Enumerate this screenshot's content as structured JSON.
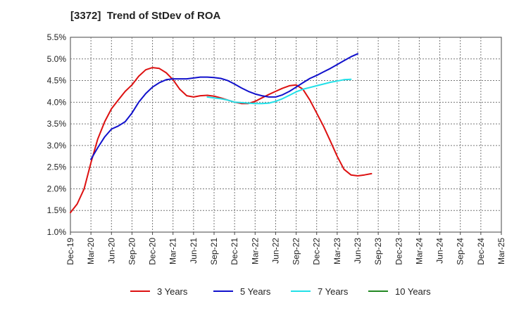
{
  "chart_data": {
    "type": "line",
    "title": "[3372]  Trend of StDev of ROA",
    "xlabel": "",
    "ylabel": "",
    "ylim": [
      1.0,
      5.5
    ],
    "yticks": [
      "1.0%",
      "1.5%",
      "2.0%",
      "2.5%",
      "3.0%",
      "3.5%",
      "4.0%",
      "4.5%",
      "5.0%",
      "5.5%"
    ],
    "categories": [
      "Dec-19",
      "Mar-20",
      "Jun-20",
      "Sep-20",
      "Dec-20",
      "Mar-21",
      "Jun-21",
      "Sep-21",
      "Dec-21",
      "Mar-22",
      "Jun-22",
      "Sep-22",
      "Dec-22",
      "Mar-23",
      "Jun-23",
      "Sep-23",
      "Dec-23",
      "Mar-24",
      "Jun-24",
      "Sep-24",
      "Dec-24",
      "Mar-25"
    ],
    "grid": true,
    "legend_position": "bottom",
    "series": [
      {
        "name": "3 Years",
        "color": "#dd1111",
        "points": [
          [
            0,
            1.45
          ],
          [
            0.33,
            1.65
          ],
          [
            0.67,
            2.0
          ],
          [
            1,
            2.6
          ],
          [
            1.33,
            3.15
          ],
          [
            1.67,
            3.55
          ],
          [
            2,
            3.85
          ],
          [
            2.33,
            4.05
          ],
          [
            2.67,
            4.25
          ],
          [
            3,
            4.4
          ],
          [
            3.33,
            4.6
          ],
          [
            3.67,
            4.75
          ],
          [
            4,
            4.8
          ],
          [
            4.33,
            4.78
          ],
          [
            4.67,
            4.68
          ],
          [
            5,
            4.52
          ],
          [
            5.33,
            4.3
          ],
          [
            5.67,
            4.15
          ],
          [
            6,
            4.12
          ],
          [
            6.33,
            4.15
          ],
          [
            6.67,
            4.16
          ],
          [
            7,
            4.14
          ],
          [
            7.33,
            4.1
          ],
          [
            7.67,
            4.05
          ],
          [
            8,
            4.0
          ],
          [
            8.33,
            3.97
          ],
          [
            8.67,
            3.97
          ],
          [
            9,
            4.02
          ],
          [
            9.33,
            4.1
          ],
          [
            9.67,
            4.18
          ],
          [
            10,
            4.25
          ],
          [
            10.33,
            4.32
          ],
          [
            10.67,
            4.38
          ],
          [
            11,
            4.4
          ],
          [
            11.33,
            4.3
          ],
          [
            11.67,
            4.05
          ],
          [
            12,
            3.75
          ],
          [
            12.33,
            3.45
          ],
          [
            12.67,
            3.1
          ],
          [
            13,
            2.75
          ],
          [
            13.33,
            2.45
          ],
          [
            13.67,
            2.32
          ],
          [
            14,
            2.3
          ],
          [
            14.33,
            2.32
          ],
          [
            14.67,
            2.35
          ]
        ]
      },
      {
        "name": "5 Years",
        "color": "#1111cc",
        "points": [
          [
            1,
            2.68
          ],
          [
            1.33,
            2.95
          ],
          [
            1.67,
            3.2
          ],
          [
            2,
            3.38
          ],
          [
            2.33,
            3.45
          ],
          [
            2.67,
            3.55
          ],
          [
            3,
            3.75
          ],
          [
            3.33,
            4.0
          ],
          [
            3.67,
            4.2
          ],
          [
            4,
            4.35
          ],
          [
            4.33,
            4.45
          ],
          [
            4.67,
            4.52
          ],
          [
            5,
            4.54
          ],
          [
            5.33,
            4.54
          ],
          [
            5.67,
            4.54
          ],
          [
            6,
            4.56
          ],
          [
            6.33,
            4.58
          ],
          [
            6.67,
            4.58
          ],
          [
            7,
            4.57
          ],
          [
            7.33,
            4.55
          ],
          [
            7.67,
            4.5
          ],
          [
            8,
            4.42
          ],
          [
            8.33,
            4.33
          ],
          [
            8.67,
            4.25
          ],
          [
            9,
            4.19
          ],
          [
            9.33,
            4.15
          ],
          [
            9.67,
            4.12
          ],
          [
            10,
            4.12
          ],
          [
            10.33,
            4.17
          ],
          [
            10.67,
            4.25
          ],
          [
            11,
            4.35
          ],
          [
            11.33,
            4.45
          ],
          [
            11.67,
            4.55
          ],
          [
            12,
            4.62
          ],
          [
            12.33,
            4.7
          ],
          [
            12.67,
            4.78
          ],
          [
            13,
            4.87
          ],
          [
            13.33,
            4.96
          ],
          [
            13.67,
            5.05
          ],
          [
            14,
            5.12
          ]
        ]
      },
      {
        "name": "7 Years",
        "color": "#22e0e8",
        "points": [
          [
            6.67,
            4.12
          ],
          [
            7,
            4.1
          ],
          [
            7.33,
            4.08
          ],
          [
            7.67,
            4.05
          ],
          [
            8,
            4.0
          ],
          [
            8.33,
            3.99
          ],
          [
            8.67,
            3.98
          ],
          [
            9,
            3.97
          ],
          [
            9.33,
            3.97
          ],
          [
            9.67,
            3.98
          ],
          [
            10,
            4.02
          ],
          [
            10.33,
            4.08
          ],
          [
            10.67,
            4.16
          ],
          [
            11,
            4.24
          ],
          [
            11.33,
            4.3
          ],
          [
            11.67,
            4.34
          ],
          [
            12,
            4.38
          ],
          [
            12.33,
            4.42
          ],
          [
            12.67,
            4.46
          ],
          [
            13,
            4.49
          ],
          [
            13.33,
            4.52
          ],
          [
            13.67,
            4.53
          ]
        ]
      },
      {
        "name": "10 Years",
        "color": "#228822",
        "points": []
      }
    ]
  }
}
